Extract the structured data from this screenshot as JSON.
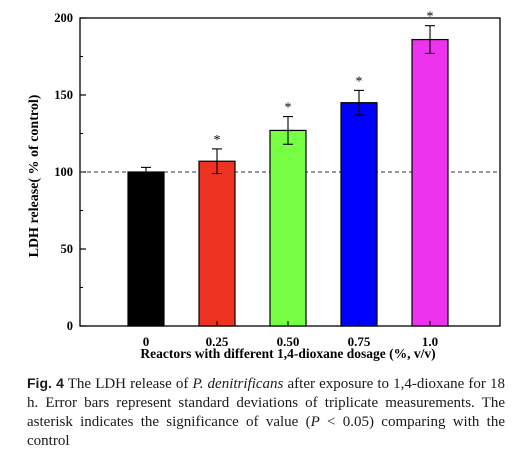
{
  "chart_data": {
    "type": "bar",
    "categories": [
      "0",
      "0.25",
      "0.50",
      "0.75",
      "1.0"
    ],
    "values": [
      100,
      107,
      127,
      145,
      186
    ],
    "errors": [
      3,
      8,
      9,
      8,
      9
    ],
    "significant": [
      false,
      true,
      true,
      true,
      true
    ],
    "significance_marker": "*",
    "bar_colors": [
      "#000000",
      "#ee3322",
      "#77ff44",
      "#0000ff",
      "#ee33ee"
    ],
    "xlabel": "Reactors with different 1,4-dioxane dosage (%, v/v)",
    "ylabel": "LDH release(  % of control)",
    "ylim": [
      0,
      200
    ],
    "yticks": [
      0,
      50,
      100,
      150,
      200
    ],
    "reference_line": 100,
    "grid": false
  },
  "caption": {
    "label": "Fig. 4",
    "text_before": "The LDH release of",
    "species": "P. denitrificans",
    "text_middle": "after exposure to 1,4-dioxane for 18 h. Error bars represent standard deviations of triplicate measurements. The asterisk indicates the significance of value (",
    "p_symbol": "P",
    "text_after": "< 0.05) comparing with the control"
  }
}
